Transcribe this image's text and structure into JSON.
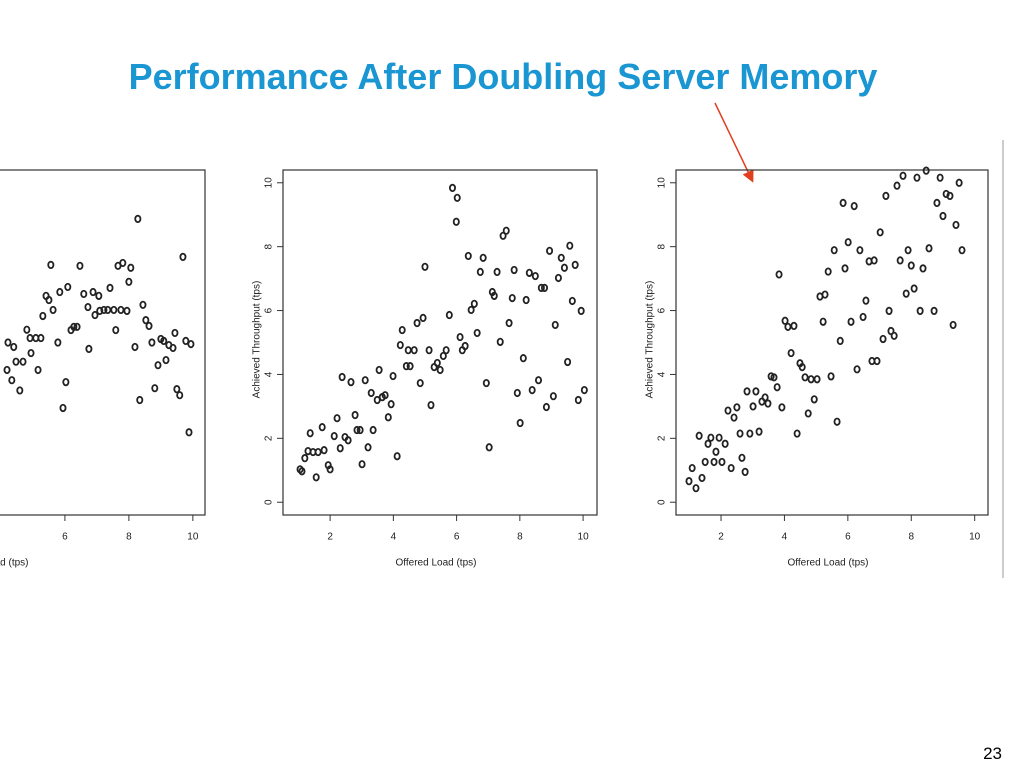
{
  "title": "Performance After Doubling Server Memory",
  "page_number": "23",
  "chart_data": [
    {
      "type": "scatter",
      "xlabel": "Offered Load (tps)",
      "color": "#222222",
      "xlim": [
        0.5,
        10.38
      ],
      "ylim": [
        -0.4,
        10.4
      ],
      "xticks": [
        6,
        8,
        10
      ],
      "x": [
        4.19,
        4.34,
        4.22,
        4.4,
        4.59,
        4.69,
        4.47,
        4.81,
        4.94,
        4.91,
        5.09,
        5.16,
        5.25,
        5.31,
        5.41,
        5.5,
        5.56,
        5.63,
        5.78,
        5.84,
        5.94,
        6.03,
        6.09,
        6.19,
        6.28,
        6.38,
        6.47,
        6.59,
        6.72,
        6.75,
        6.88,
        6.94,
        7.06,
        7.09,
        7.22,
        7.34,
        7.41,
        7.53,
        7.59,
        7.66,
        7.81,
        7.75,
        7.94,
        8.0,
        8.06,
        8.19,
        8.28,
        8.34,
        8.44,
        8.53,
        8.63,
        8.72,
        8.81,
        8.91,
        9.0,
        9.09,
        9.16,
        9.25,
        9.38,
        9.44,
        9.5,
        9.59,
        9.69,
        9.78,
        9.88,
        9.94
      ],
      "values": [
        4.14,
        3.82,
        5.0,
        4.86,
        3.5,
        4.4,
        4.4,
        5.4,
        4.67,
        5.14,
        5.14,
        4.14,
        5.14,
        5.83,
        6.46,
        6.33,
        7.43,
        6.02,
        5.0,
        6.58,
        2.95,
        3.76,
        6.74,
        5.39,
        5.49,
        5.49,
        7.4,
        6.52,
        6.11,
        4.8,
        6.58,
        5.86,
        6.46,
        5.99,
        6.02,
        6.02,
        6.71,
        6.02,
        5.39,
        7.4,
        7.49,
        6.02,
        5.99,
        6.9,
        7.34,
        4.86,
        8.87,
        3.2,
        6.18,
        5.7,
        5.52,
        5.0,
        3.57,
        4.29,
        5.11,
        5.05,
        4.45,
        4.92,
        4.83,
        5.3,
        3.54,
        3.35,
        7.68,
        5.05,
        2.19,
        4.95
      ]
    },
    {
      "type": "scatter",
      "xlabel": "Offered Load (tps)",
      "ylabel": "Achieved  Throughput (tps)",
      "color": "#222222",
      "xlim": [
        0.51,
        10.44
      ],
      "ylim": [
        -0.4,
        10.4
      ],
      "xticks": [
        2,
        4,
        6,
        8,
        10
      ],
      "yticks": [
        0,
        2,
        4,
        6,
        8,
        10
      ],
      "x": [
        1.05,
        1.11,
        1.2,
        1.3,
        1.37,
        1.46,
        1.56,
        1.62,
        1.75,
        1.81,
        1.94,
        2.0,
        2.13,
        2.22,
        2.32,
        2.38,
        2.47,
        2.57,
        2.66,
        2.79,
        2.85,
        2.95,
        3.01,
        3.11,
        3.2,
        3.3,
        3.36,
        3.49,
        3.55,
        3.65,
        3.74,
        3.84,
        3.93,
        3.99,
        4.12,
        4.22,
        4.28,
        4.41,
        4.47,
        4.53,
        4.66,
        4.75,
        4.85,
        4.94,
        5.0,
        5.13,
        5.19,
        5.29,
        5.39,
        5.48,
        5.58,
        5.67,
        5.77,
        5.87,
        5.99,
        6.02,
        6.11,
        6.18,
        6.27,
        6.37,
        6.46,
        6.56,
        6.65,
        6.75,
        6.84,
        6.94,
        7.03,
        7.13,
        7.19,
        7.28,
        7.38,
        7.47,
        7.57,
        7.66,
        7.76,
        7.82,
        7.92,
        8.01,
        8.11,
        8.2,
        8.3,
        8.39,
        8.49,
        8.59,
        8.68,
        8.78,
        8.84,
        8.94,
        9.06,
        9.12,
        9.22,
        9.31,
        9.41,
        9.51,
        9.58,
        9.66,
        9.75,
        9.85,
        9.94,
        10.04
      ],
      "values": [
        1.03,
        0.97,
        1.38,
        1.6,
        2.16,
        1.57,
        0.78,
        1.57,
        2.35,
        1.63,
        1.16,
        1.03,
        2.07,
        2.63,
        1.69,
        3.92,
        2.04,
        1.94,
        3.76,
        2.73,
        2.26,
        2.26,
        1.19,
        3.82,
        1.72,
        3.42,
        2.26,
        3.2,
        4.14,
        3.29,
        3.35,
        2.66,
        3.07,
        3.95,
        1.44,
        4.92,
        5.39,
        4.26,
        4.76,
        4.26,
        4.76,
        5.61,
        3.73,
        5.77,
        7.37,
        4.76,
        3.04,
        4.23,
        4.36,
        4.14,
        4.58,
        4.76,
        5.86,
        9.84,
        8.78,
        9.53,
        5.17,
        4.76,
        4.89,
        7.71,
        6.02,
        6.21,
        5.3,
        7.21,
        7.65,
        3.73,
        1.72,
        6.58,
        6.46,
        7.21,
        5.02,
        8.34,
        8.5,
        5.61,
        6.39,
        7.27,
        3.42,
        2.48,
        4.51,
        6.33,
        7.18,
        3.51,
        7.08,
        3.82,
        6.71,
        6.71,
        2.98,
        7.87,
        3.32,
        5.55,
        7.02,
        7.65,
        7.34,
        4.39,
        8.03,
        6.3,
        7.43,
        3.2,
        5.99,
        3.51
      ]
    },
    {
      "type": "scatter",
      "xlabel": "Offered Load (tps)",
      "ylabel": "Achieved  Throughput (tps)",
      "color": "#222222",
      "xlim": [
        0.58,
        10.42
      ],
      "ylim": [
        -0.4,
        10.4
      ],
      "xticks": [
        2,
        4,
        6,
        8,
        10
      ],
      "yticks": [
        0,
        2,
        4,
        6,
        8,
        10
      ],
      "x": [
        0.99,
        1.09,
        1.21,
        1.31,
        1.4,
        1.5,
        1.59,
        1.68,
        1.78,
        1.84,
        1.94,
        2.03,
        2.13,
        2.22,
        2.32,
        2.41,
        2.5,
        2.6,
        2.66,
        2.76,
        2.82,
        2.91,
        3.01,
        3.1,
        3.2,
        3.29,
        3.39,
        3.48,
        3.58,
        3.67,
        3.77,
        3.83,
        3.92,
        4.02,
        4.11,
        4.21,
        4.3,
        4.4,
        4.49,
        4.56,
        4.65,
        4.75,
        4.84,
        4.94,
        5.03,
        5.12,
        5.22,
        5.28,
        5.38,
        5.47,
        5.57,
        5.66,
        5.76,
        5.85,
        5.91,
        6.01,
        6.1,
        6.2,
        6.29,
        6.38,
        6.48,
        6.57,
        6.67,
        6.76,
        6.83,
        6.92,
        7.02,
        7.11,
        7.2,
        7.3,
        7.36,
        7.46,
        7.55,
        7.65,
        7.74,
        7.84,
        7.9,
        8.0,
        8.09,
        8.18,
        8.28,
        8.37,
        8.47,
        8.56,
        8.72,
        8.81,
        8.91,
        9.0,
        9.1,
        9.22,
        9.32,
        9.41,
        9.51,
        9.6
      ],
      "values": [
        0.66,
        1.07,
        0.44,
        2.08,
        0.76,
        1.26,
        1.83,
        2.02,
        1.26,
        1.58,
        2.02,
        1.26,
        1.83,
        2.87,
        1.07,
        2.65,
        2.97,
        2.15,
        1.39,
        0.95,
        3.47,
        2.15,
        3.0,
        3.47,
        2.21,
        3.15,
        3.28,
        3.09,
        3.94,
        3.91,
        3.6,
        7.13,
        2.97,
        5.68,
        5.49,
        4.67,
        5.52,
        2.15,
        4.35,
        4.23,
        3.91,
        2.78,
        3.85,
        3.22,
        3.85,
        6.44,
        5.65,
        6.5,
        7.22,
        3.94,
        7.89,
        2.52,
        5.05,
        9.37,
        7.32,
        8.14,
        5.65,
        9.27,
        4.16,
        7.89,
        5.8,
        6.31,
        7.54,
        4.42,
        7.57,
        4.42,
        8.45,
        5.11,
        9.59,
        5.99,
        5.36,
        5.21,
        9.91,
        7.57,
        10.22,
        6.53,
        7.89,
        7.41,
        6.69,
        10.16,
        5.99,
        7.32,
        10.38,
        7.95,
        5.99,
        9.37,
        10.16,
        8.96,
        9.65,
        9.59,
        5.55,
        8.68,
        10.0,
        7.89
      ]
    }
  ]
}
